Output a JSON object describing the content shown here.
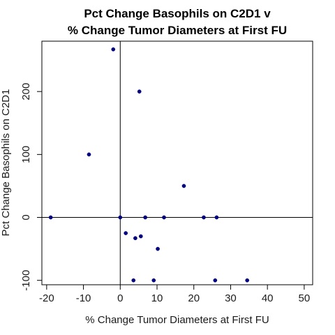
{
  "chart_data": {
    "type": "scatter",
    "title": [
      "Pct Change Basophils on C2D1 v",
      "% Change Tumor Diameters at First FU"
    ],
    "xlabel": "% Change Tumor Diameters at First FU",
    "ylabel": "Pct Change Basophils on C2D1",
    "xlim": [
      -21.3,
      52.3
    ],
    "ylim": [
      -107,
      280
    ],
    "xticks": [
      -20,
      -10,
      0,
      10,
      20,
      30,
      40,
      50
    ],
    "yticks": [
      -100,
      0,
      100,
      200
    ],
    "reference_lines": {
      "x": 0,
      "y": 0
    },
    "point_color": "#000080",
    "points": [
      {
        "x": -1.9,
        "y": 267
      },
      {
        "x": 5.2,
        "y": 200
      },
      {
        "x": -8.5,
        "y": 100
      },
      {
        "x": 17.3,
        "y": 50
      },
      {
        "x": -18.9,
        "y": 0
      },
      {
        "x": 0.0,
        "y": 0
      },
      {
        "x": 6.8,
        "y": 0
      },
      {
        "x": 11.9,
        "y": 0
      },
      {
        "x": 22.7,
        "y": 0
      },
      {
        "x": 26.2,
        "y": 0
      },
      {
        "x": 1.5,
        "y": -25
      },
      {
        "x": 5.6,
        "y": -30
      },
      {
        "x": 4.1,
        "y": -33
      },
      {
        "x": 10.2,
        "y": -50
      },
      {
        "x": 3.6,
        "y": -100
      },
      {
        "x": 9.1,
        "y": -100
      },
      {
        "x": 25.8,
        "y": -100
      },
      {
        "x": 34.5,
        "y": -100
      }
    ]
  }
}
